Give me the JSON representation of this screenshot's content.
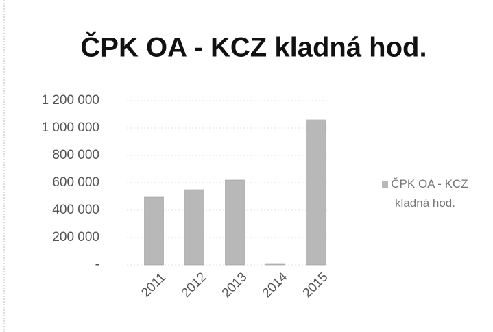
{
  "chart_data": {
    "type": "bar",
    "title": "ČPK OA - KCZ kladná  hod.",
    "categories": [
      "2011",
      "2012",
      "2013",
      "2014",
      "2015"
    ],
    "series": [
      {
        "name": "ČPK OA - KCZ kladná hod.",
        "color": "#b8b8b8",
        "values": [
          495000,
          550000,
          620000,
          10000,
          1060000
        ]
      }
    ],
    "ylim": [
      0,
      1200000
    ],
    "yticks": [
      {
        "value": 0,
        "label": "-"
      },
      {
        "value": 200000,
        "label": "200 000"
      },
      {
        "value": 400000,
        "label": "400 000"
      },
      {
        "value": 600000,
        "label": "600 000"
      },
      {
        "value": 800000,
        "label": "800 000"
      },
      {
        "value": 1000000,
        "label": "1 000 000"
      },
      {
        "value": 1200000,
        "label": "1 200 000"
      }
    ],
    "grid": true,
    "legend": "right"
  }
}
